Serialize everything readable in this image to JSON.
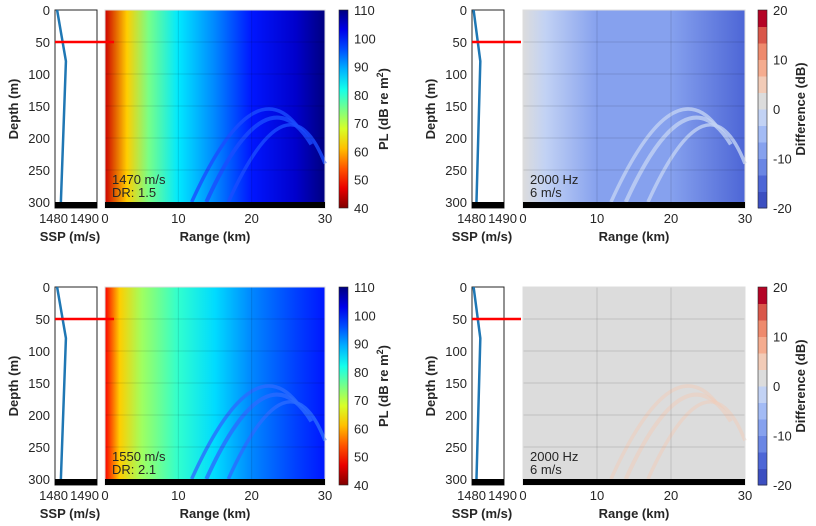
{
  "chart_data": [
    {
      "type": "heatmap",
      "panel": "top-left",
      "ssp": {
        "xlabel": "SSP (m/s)",
        "xticks": [
          "1480",
          "1490"
        ],
        "xlim": [
          1480,
          1490
        ],
        "profile": [
          {
            "speed": 1480.5,
            "depth": 0
          },
          {
            "speed": 1482.6,
            "depth": 80
          },
          {
            "speed": 1481.4,
            "depth": 300
          }
        ],
        "source_depth": 50
      },
      "ylabel": "Depth (m)",
      "yticks": [
        "0",
        "50",
        "100",
        "150",
        "200",
        "250",
        "300"
      ],
      "ylim": [
        0,
        300
      ],
      "xlabel": "Range (km)",
      "xticks": [
        "0",
        "10",
        "20",
        "30"
      ],
      "xlim": [
        0,
        30
      ],
      "annotation": [
        "1470 m/s",
        "DR: 1.5"
      ],
      "colorbar": {
        "label": "PL (dB re m",
        "label_sup": "2",
        "label_end": ")",
        "ticks": [
          "40",
          "50",
          "60",
          "70",
          "80",
          "90",
          "100",
          "110"
        ],
        "range": [
          40,
          110
        ],
        "colormap": "jet"
      },
      "field_profile_by_range": [
        {
          "range": 0,
          "pl": 45
        },
        {
          "range": 3,
          "pl": 62
        },
        {
          "range": 6,
          "pl": 75
        },
        {
          "range": 10,
          "pl": 85
        },
        {
          "range": 15,
          "pl": 92
        },
        {
          "range": 20,
          "pl": 100
        },
        {
          "range": 26,
          "pl": 105
        },
        {
          "range": 30,
          "pl": 110
        }
      ]
    },
    {
      "type": "heatmap",
      "panel": "top-right",
      "ssp": {
        "xlabel": "SSP (m/s)",
        "xticks": [
          "1480",
          "1490"
        ],
        "xlim": [
          1480,
          1490
        ],
        "profile": [
          {
            "speed": 1480.5,
            "depth": 0
          },
          {
            "speed": 1482.6,
            "depth": 80
          },
          {
            "speed": 1481.4,
            "depth": 300
          }
        ],
        "source_depth": 50
      },
      "ylabel": "Depth (m)",
      "yticks": [
        "0",
        "50",
        "100",
        "150",
        "200",
        "250",
        "300"
      ],
      "ylim": [
        0,
        300
      ],
      "xlabel": "Range (km)",
      "xticks": [
        "0",
        "10",
        "20",
        "30"
      ],
      "xlim": [
        0,
        30
      ],
      "annotation": [
        "2000 Hz",
        "6 m/s"
      ],
      "colorbar": {
        "label": "Difference (dB)",
        "ticks": [
          "-20",
          "-10",
          "0",
          "10",
          "20"
        ],
        "range": [
          -20,
          20
        ],
        "colormap": "diverging-blue-red"
      },
      "field_profile_by_range": [
        {
          "range": 0,
          "diff": 0
        },
        {
          "range": 3,
          "diff": -3
        },
        {
          "range": 10,
          "diff": -7
        },
        {
          "range": 20,
          "diff": -10
        },
        {
          "range": 30,
          "diff": -16
        }
      ]
    },
    {
      "type": "heatmap",
      "panel": "bottom-left",
      "ssp": {
        "xlabel": "SSP (m/s)",
        "xticks": [
          "1480",
          "1490"
        ],
        "xlim": [
          1480,
          1490
        ],
        "profile": [
          {
            "speed": 1480.5,
            "depth": 0
          },
          {
            "speed": 1482.6,
            "depth": 80
          },
          {
            "speed": 1481.4,
            "depth": 300
          }
        ],
        "source_depth": 50
      },
      "ylabel": "Depth (m)",
      "yticks": [
        "0",
        "50",
        "100",
        "150",
        "200",
        "250",
        "300"
      ],
      "ylim": [
        0,
        300
      ],
      "xlabel": "Range (km)",
      "xticks": [
        "0",
        "10",
        "20",
        "30"
      ],
      "xlim": [
        0,
        30
      ],
      "annotation": [
        "1550 m/s",
        "DR: 2.1"
      ],
      "colorbar": {
        "label": "PL (dB re m",
        "label_sup": "2",
        "label_end": ")",
        "ticks": [
          "40",
          "50",
          "60",
          "70",
          "80",
          "90",
          "100",
          "110"
        ],
        "range": [
          40,
          110
        ],
        "colormap": "jet"
      },
      "field_profile_by_range": [
        {
          "range": 0,
          "pl": 48
        },
        {
          "range": 2,
          "pl": 62
        },
        {
          "range": 5,
          "pl": 72
        },
        {
          "range": 10,
          "pl": 80
        },
        {
          "range": 15,
          "pl": 86
        },
        {
          "range": 20,
          "pl": 92
        },
        {
          "range": 26,
          "pl": 97
        },
        {
          "range": 30,
          "pl": 100
        }
      ]
    },
    {
      "type": "heatmap",
      "panel": "bottom-right",
      "ssp": {
        "xlabel": "SSP (m/s)",
        "xticks": [
          "1480",
          "1490"
        ],
        "xlim": [
          1480,
          1490
        ],
        "profile": [
          {
            "speed": 1480.5,
            "depth": 0
          },
          {
            "speed": 1482.6,
            "depth": 80
          },
          {
            "speed": 1481.4,
            "depth": 300
          }
        ],
        "source_depth": 50
      },
      "ylabel": "Depth (m)",
      "yticks": [
        "0",
        "50",
        "100",
        "150",
        "200",
        "250",
        "300"
      ],
      "ylim": [
        0,
        300
      ],
      "xlabel": "Range (km)",
      "xticks": [
        "0",
        "10",
        "20",
        "30"
      ],
      "xlim": [
        0,
        30
      ],
      "annotation": [
        "2000 Hz",
        "6 m/s"
      ],
      "colorbar": {
        "label": "Difference (dB)",
        "ticks": [
          "-20",
          "-10",
          "0",
          "10",
          "20"
        ],
        "range": [
          -20,
          20
        ],
        "colormap": "diverging-blue-red"
      },
      "field_profile_by_range": [
        {
          "range": 0,
          "diff": 0
        },
        {
          "range": 18,
          "diff": 0
        },
        {
          "range": 22,
          "diff": 2
        },
        {
          "range": 30,
          "diff": 2
        }
      ]
    }
  ],
  "colors": {
    "ssp_line": "#1f77b4",
    "source_line": "#ff0000",
    "seabed": "#000000",
    "zero_diff": "#dcdcdc"
  }
}
